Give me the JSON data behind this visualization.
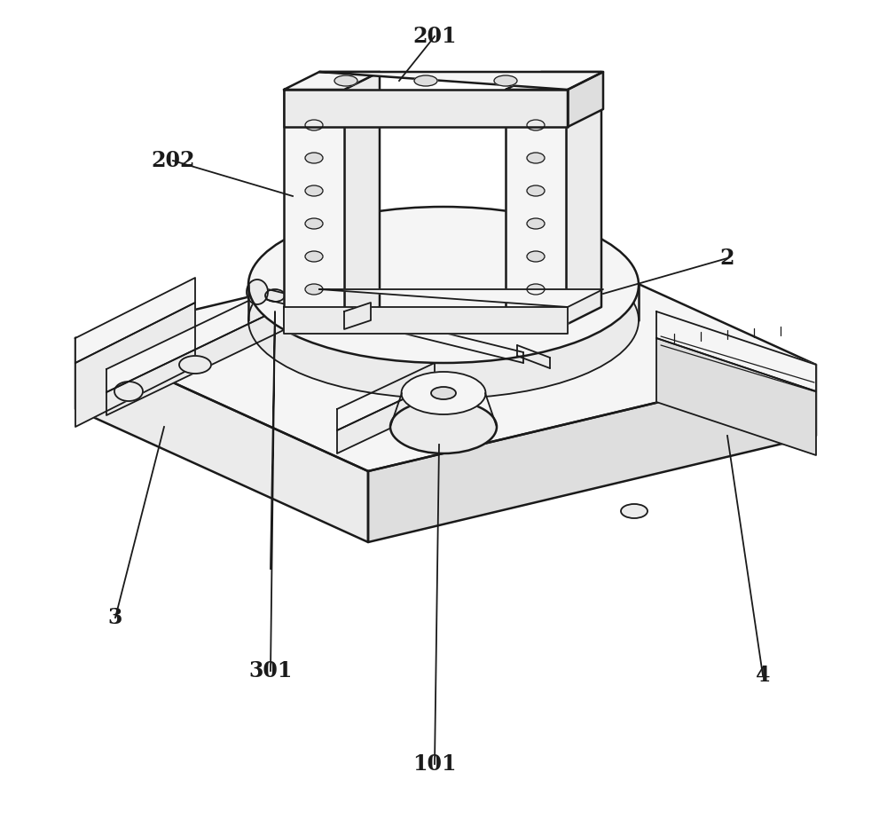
{
  "bg_color": "#ffffff",
  "lc": "#1a1a1a",
  "lw": 1.3,
  "lw_thick": 1.8,
  "fill_light": "#f5f5f5",
  "fill_mid": "#ebebeb",
  "fill_dark": "#dedede",
  "fig_width": 10.0,
  "fig_height": 9.41,
  "label_fontsize": 17,
  "label_fontweight": "bold",
  "label_font": "DejaVu Serif"
}
